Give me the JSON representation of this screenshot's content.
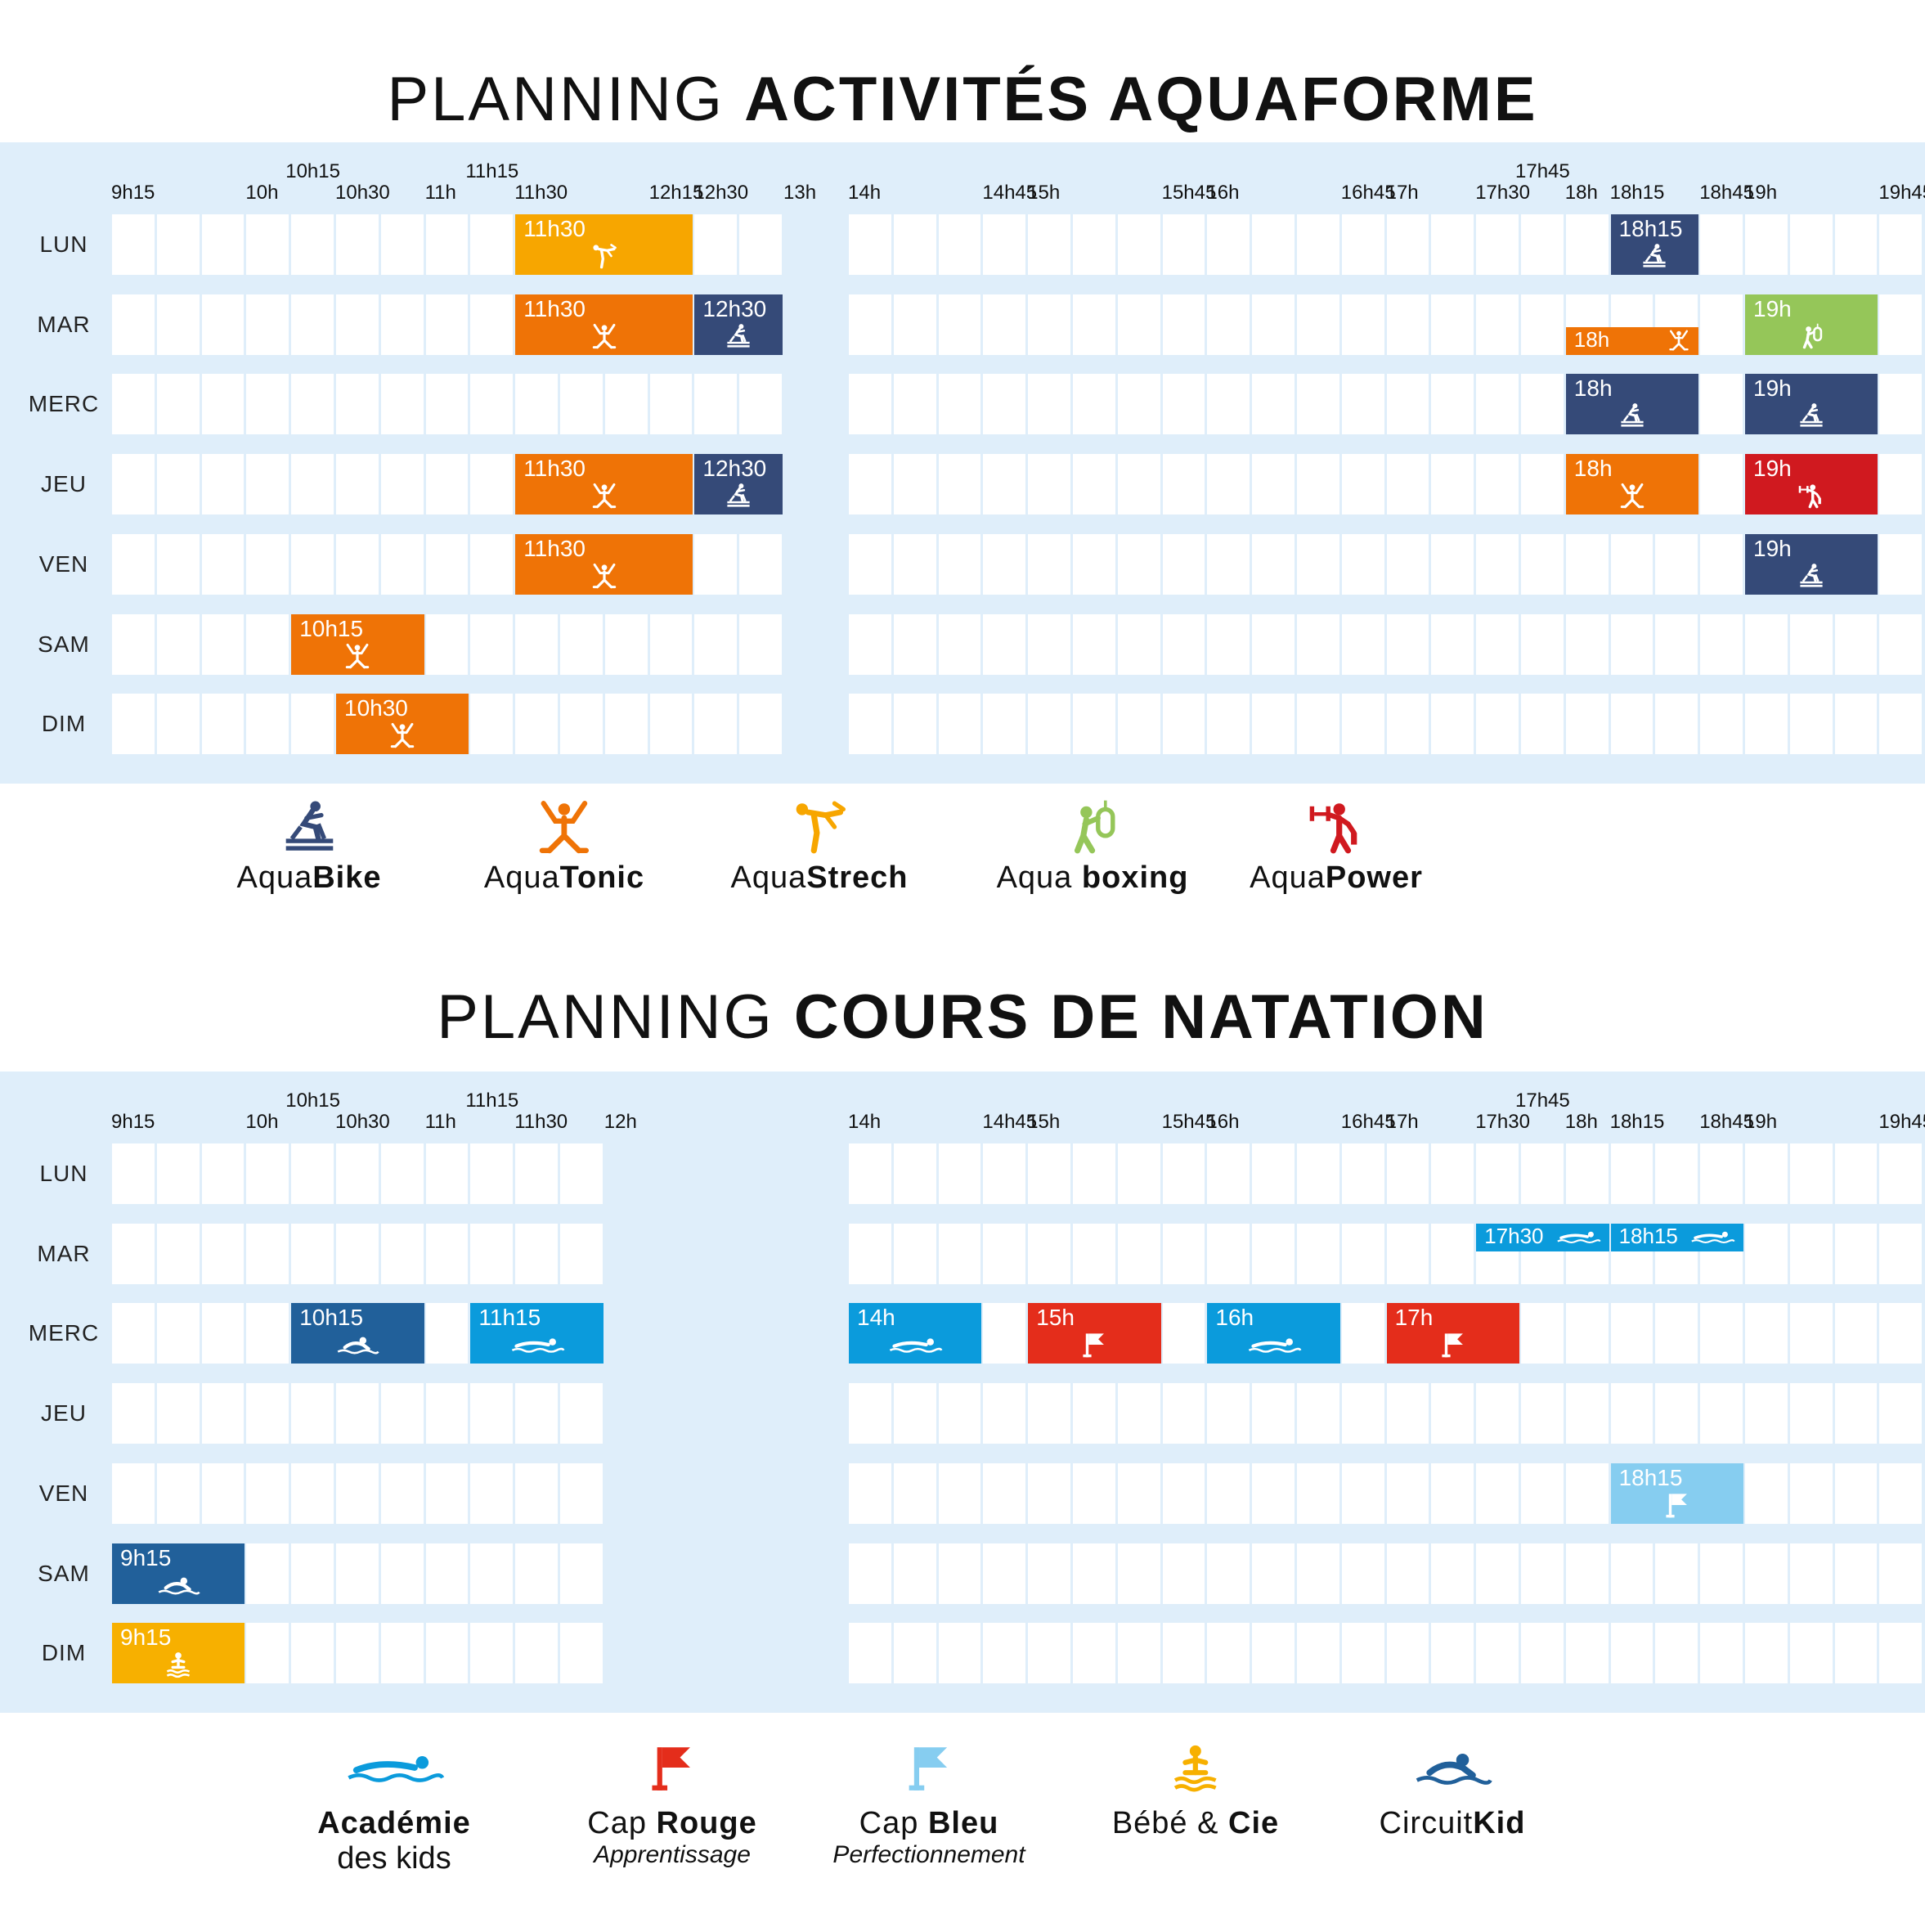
{
  "aquaforme": {
    "title_light": "PLANNING ",
    "title_bold": "ACTIVITÉS AQUAFORME",
    "days": [
      "LUN",
      "MAR",
      "MERC",
      "JEU",
      "VEN",
      "SAM",
      "DIM"
    ],
    "ticks_lower": [
      "9h15",
      "10h",
      "10h30",
      "11h",
      "11h30",
      "12h15",
      "12h30",
      "13h",
      "14h",
      "14h45",
      "15h",
      "15h45",
      "16h",
      "16h45",
      "17h",
      "17h30",
      "18h",
      "18h15",
      "18h45",
      "19h",
      "19h45"
    ],
    "ticks_upper": [
      "10h15",
      "11h15",
      "17h45"
    ],
    "events": [
      {
        "day": 0,
        "start": "11h30",
        "end": "12h30",
        "label": "11h30",
        "activity": "AquaStrech",
        "color": "#f7a600",
        "icon": "stretch-icon"
      },
      {
        "day": 0,
        "start": "18h15",
        "end": "18h45",
        "label": "18h15",
        "activity": "AquaBike",
        "color": "#354a78",
        "icon": "bike-icon"
      },
      {
        "day": 1,
        "start": "11h30",
        "end": "12h30",
        "label": "11h30",
        "activity": "AquaTonic",
        "color": "#ef7306",
        "icon": "tonic-icon"
      },
      {
        "day": 1,
        "start": "12h30",
        "end": "13h",
        "label": "12h30",
        "activity": "AquaBike",
        "color": "#354a78",
        "icon": "bike-icon"
      },
      {
        "day": 1,
        "start": "18h",
        "end": "18h45",
        "label": "18h",
        "activity": "AquaTonic",
        "color": "#ef7306",
        "icon": "tonic-icon",
        "half": true
      },
      {
        "day": 1,
        "start": "19h",
        "end": "19h45",
        "label": "19h",
        "activity": "Aqua boxing",
        "color": "#95c659",
        "icon": "boxing-icon"
      },
      {
        "day": 2,
        "start": "18h",
        "end": "18h45",
        "label": "18h",
        "activity": "AquaBike",
        "color": "#354a78",
        "icon": "bike-icon"
      },
      {
        "day": 2,
        "start": "19h",
        "end": "19h45",
        "label": "19h",
        "activity": "AquaBike",
        "color": "#354a78",
        "icon": "bike-icon"
      },
      {
        "day": 3,
        "start": "11h30",
        "end": "12h30",
        "label": "11h30",
        "activity": "AquaTonic",
        "color": "#ef7306",
        "icon": "tonic-icon"
      },
      {
        "day": 3,
        "start": "12h30",
        "end": "13h",
        "label": "12h30",
        "activity": "AquaBike",
        "color": "#354a78",
        "icon": "bike-icon"
      },
      {
        "day": 3,
        "start": "18h",
        "end": "18h45",
        "label": "18h",
        "activity": "AquaTonic",
        "color": "#ef7306",
        "icon": "tonic-icon"
      },
      {
        "day": 3,
        "start": "19h",
        "end": "19h45",
        "label": "19h",
        "activity": "AquaPower",
        "color": "#d0191f",
        "icon": "power-icon"
      },
      {
        "day": 4,
        "start": "11h30",
        "end": "12h30",
        "label": "11h30",
        "activity": "AquaTonic",
        "color": "#ef7306",
        "icon": "tonic-icon"
      },
      {
        "day": 4,
        "start": "19h",
        "end": "19h45",
        "label": "19h",
        "activity": "AquaBike",
        "color": "#354a78",
        "icon": "bike-icon"
      },
      {
        "day": 5,
        "start": "10h15",
        "end": "11h",
        "label": "10h15",
        "activity": "AquaTonic",
        "color": "#ef7306",
        "icon": "tonic-icon"
      },
      {
        "day": 6,
        "start": "10h30",
        "end": "11h15",
        "label": "10h30",
        "activity": "AquaTonic",
        "color": "#ef7306",
        "icon": "tonic-icon"
      }
    ],
    "legend": [
      {
        "light": "Aqua",
        "bold": "Bike",
        "color": "#354a78",
        "icon": "bike-icon"
      },
      {
        "light": "Aqua",
        "bold": "Tonic",
        "color": "#ef7306",
        "icon": "tonic-icon"
      },
      {
        "light": "Aqua",
        "bold": "Strech",
        "color": "#f7a600",
        "icon": "stretch-icon"
      },
      {
        "light": "Aqua ",
        "bold": "boxing",
        "color": "#95c659",
        "icon": "boxing-icon"
      },
      {
        "light": "Aqua",
        "bold": "Power",
        "color": "#d0191f",
        "icon": "power-icon"
      }
    ]
  },
  "natation": {
    "title_light": "PLANNING ",
    "title_bold": "COURS DE NATATION",
    "days": [
      "LUN",
      "MAR",
      "MERC",
      "JEU",
      "VEN",
      "SAM",
      "DIM"
    ],
    "ticks_lower": [
      "9h15",
      "10h",
      "10h30",
      "11h",
      "11h30",
      "12h",
      "14h",
      "14h45",
      "15h",
      "15h45",
      "16h",
      "16h45",
      "17h",
      "17h30",
      "18h",
      "18h15",
      "18h45",
      "19h",
      "19h45"
    ],
    "ticks_upper": [
      "10h15",
      "11h15",
      "17h45"
    ],
    "events": [
      {
        "day": 1,
        "start": "17h30",
        "end": "18h15",
        "label": "17h30",
        "course": "Académie des kids",
        "color": "#0b9bdc",
        "icon": "swimmer-icon",
        "half": true
      },
      {
        "day": 1,
        "start": "18h15",
        "end": "19h",
        "label": "18h15",
        "course": "Académie des kids",
        "color": "#0b9bdc",
        "icon": "swimmer-icon",
        "half": true
      },
      {
        "day": 2,
        "start": "10h15",
        "end": "11h",
        "label": "10h15",
        "course": "CircuitKid",
        "color": "#21609a",
        "icon": "kid-swimmer-icon"
      },
      {
        "day": 2,
        "start": "11h15",
        "end": "12h",
        "label": "11h15",
        "course": "Académie des kids",
        "color": "#0b9bdc",
        "icon": "swimmer-icon"
      },
      {
        "day": 2,
        "start": "14h",
        "end": "14h45",
        "label": "14h",
        "course": "Académie des kids",
        "color": "#0b9bdc",
        "icon": "swimmer-icon"
      },
      {
        "day": 2,
        "start": "15h",
        "end": "15h45",
        "label": "15h",
        "course": "Cap Rouge",
        "color": "#e42d1b",
        "icon": "flag-icon"
      },
      {
        "day": 2,
        "start": "16h",
        "end": "16h45",
        "label": "16h",
        "course": "Académie des kids",
        "color": "#0b9bdc",
        "icon": "swimmer-icon"
      },
      {
        "day": 2,
        "start": "17h",
        "end": "17h45",
        "label": "17h",
        "course": "Cap Rouge",
        "color": "#e42d1b",
        "icon": "flag-icon"
      },
      {
        "day": 4,
        "start": "18h15",
        "end": "19h",
        "label": "18h15",
        "course": "Cap Bleu",
        "color": "#86cdf0",
        "icon": "flag-icon"
      },
      {
        "day": 5,
        "start": "9h15",
        "end": "10h",
        "label": "9h15",
        "course": "CircuitKid",
        "color": "#21609a",
        "icon": "kid-swimmer-icon"
      },
      {
        "day": 6,
        "start": "9h15",
        "end": "10h",
        "label": "9h15",
        "course": "Bébé & Cie",
        "color": "#f7b000",
        "icon": "baby-icon"
      }
    ],
    "legend": [
      {
        "parts": [
          {
            "t": "Académie",
            "b": true
          }
        ],
        "line2": "des kids",
        "line2_italic": false,
        "color": "#0b9bdc",
        "icon": "swimmer-icon"
      },
      {
        "parts": [
          {
            "t": "Cap ",
            "b": false
          },
          {
            "t": "Rouge",
            "b": true
          }
        ],
        "line2": "Apprentissage",
        "line2_italic": true,
        "color": "#e42d1b",
        "icon": "flag-icon"
      },
      {
        "parts": [
          {
            "t": "Cap ",
            "b": false
          },
          {
            "t": "Bleu",
            "b": true
          }
        ],
        "line2": "Perfectionnement",
        "line2_italic": true,
        "color": "#86cdf0",
        "icon": "flag-icon"
      },
      {
        "parts": [
          {
            "t": "Bébé & ",
            "b": false
          },
          {
            "t": "Cie",
            "b": true
          }
        ],
        "line2": "",
        "line2_italic": false,
        "color": "#f7b000",
        "icon": "baby-icon"
      },
      {
        "parts": [
          {
            "t": "Circuit",
            "b": false
          },
          {
            "t": "Kid",
            "b": true
          }
        ],
        "line2": "",
        "line2_italic": false,
        "color": "#21609a",
        "icon": "kid-swimmer-icon"
      }
    ]
  }
}
